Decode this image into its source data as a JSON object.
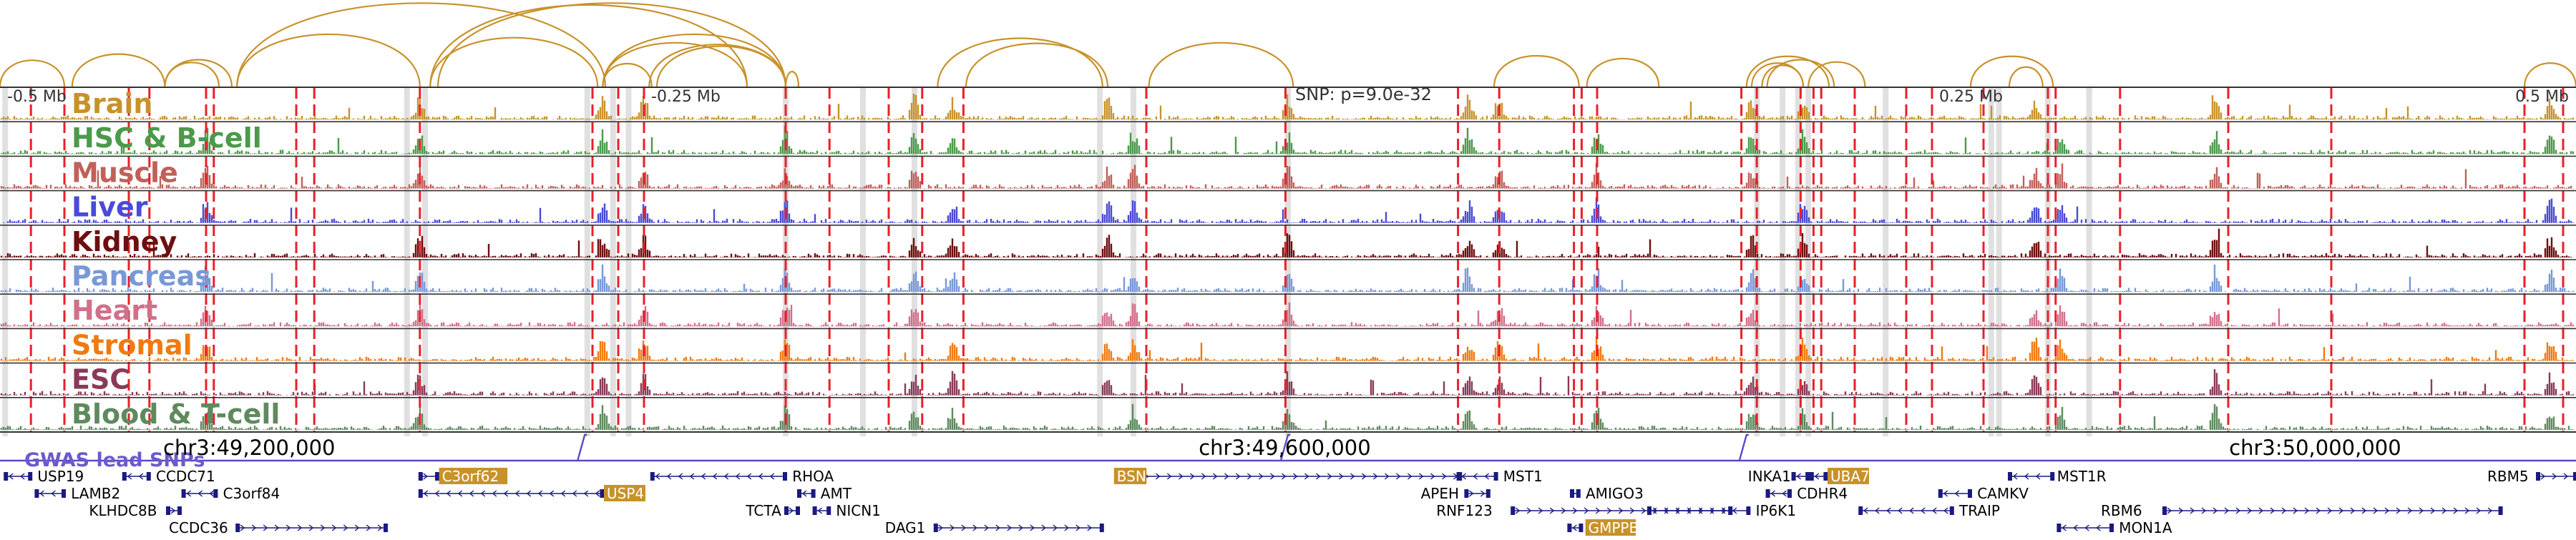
{
  "tracks": [
    {
      "name": "Brain",
      "color": "#c8922a"
    },
    {
      "name": "HSC & B-cell",
      "color": "#4a9a4a"
    },
    {
      "name": "Muscle",
      "color": "#c0605a"
    },
    {
      "name": "Liver",
      "color": "#4a4ad8"
    },
    {
      "name": "Kidney",
      "color": "#6e0e0e"
    },
    {
      "name": "Pancreas",
      "color": "#7898d8"
    },
    {
      "name": "Heart",
      "color": "#d0708a"
    },
    {
      "name": "Stromal",
      "color": "#f07a10"
    },
    {
      "name": "ESC",
      "color": "#8a3a58"
    },
    {
      "name": "Blood & T-cell",
      "color": "#5e8a5e"
    }
  ],
  "axis_ticks": [
    {
      "label": "-0.5 Mb",
      "pos": 0.0
    },
    {
      "label": "-0.25 Mb",
      "pos": 0.25
    },
    {
      "label": "0.25 Mb",
      "pos": 0.75
    },
    {
      "label": "0.5 Mb",
      "pos": 1.0
    }
  ],
  "snp_label": "SNP: p=9.0e-32",
  "gwas_label": "GWAS lead SNPs",
  "chrom_ticks": [
    {
      "label": "chr3:49,200,000",
      "pos": 0.06
    },
    {
      "label": "chr3:49,600,000",
      "pos": 0.462
    },
    {
      "label": "chr3:50,000,000",
      "pos": 0.862
    }
  ],
  "genes": [
    {
      "name": "USP19",
      "row": 0,
      "start": 0.002,
      "end": 0.012,
      "label_pos": 0.014,
      "dir": "left"
    },
    {
      "name": "CCDC71",
      "row": 0,
      "start": 0.048,
      "end": 0.058,
      "label_pos": 0.06,
      "dir": "left"
    },
    {
      "name": "C3orf62",
      "row": 0,
      "start": 0.163,
      "end": 0.17,
      "label_pos": 0.171,
      "dir": "right",
      "highlight": true
    },
    {
      "name": "RHOA",
      "row": 0,
      "start": 0.253,
      "end": 0.305,
      "label_pos": 0.307,
      "dir": "left"
    },
    {
      "name": "BSN",
      "row": 0,
      "start": 0.434,
      "end": 0.567,
      "label_pos": 0.433,
      "dir": "right",
      "highlight": true,
      "label_left": true
    },
    {
      "name": "MST1",
      "row": 0,
      "start": 0.566,
      "end": 0.581,
      "label_pos": 0.583,
      "dir": "left"
    },
    {
      "name": "INKA1",
      "row": 0,
      "start": 0.696,
      "end": 0.702,
      "label_pos": 0.678,
      "dir": "left",
      "label_left": true
    },
    {
      "name": "UBA7",
      "row": 0,
      "start": 0.703,
      "end": 0.709,
      "label_pos": 0.71,
      "dir": "left",
      "highlight": true
    },
    {
      "name": "MST1R",
      "row": 0,
      "start": 0.78,
      "end": 0.797,
      "label_pos": 0.798,
      "dir": "left"
    },
    {
      "name": "RBM5",
      "row": 0,
      "start": 0.985,
      "end": 1.0,
      "label_pos": 0.965,
      "dir": "right",
      "label_left": true
    },
    {
      "name": "LAMB2",
      "row": 1,
      "start": 0.014,
      "end": 0.025,
      "label_pos": 0.027,
      "dir": "left"
    },
    {
      "name": "C3orf84",
      "row": 1,
      "start": 0.071,
      "end": 0.084,
      "label_pos": 0.086,
      "dir": "left"
    },
    {
      "name": "USP4",
      "row": 1,
      "start": 0.163,
      "end": 0.234,
      "label_pos": 0.235,
      "dir": "left",
      "highlight": true
    },
    {
      "name": "AMT",
      "row": 1,
      "start": 0.31,
      "end": 0.316,
      "label_pos": 0.318,
      "dir": "left"
    },
    {
      "name": "APEH",
      "row": 1,
      "start": 0.569,
      "end": 0.578,
      "label_pos": 0.551,
      "dir": "right",
      "label_left": true
    },
    {
      "name": "AMIGO3",
      "row": 1,
      "start": 0.61,
      "end": 0.613,
      "label_pos": 0.615,
      "dir": "right"
    },
    {
      "name": "CDHR4",
      "row": 1,
      "start": 0.686,
      "end": 0.695,
      "label_pos": 0.697,
      "dir": "left"
    },
    {
      "name": "CAMKV",
      "row": 1,
      "start": 0.753,
      "end": 0.765,
      "label_pos": 0.767,
      "dir": "left"
    },
    {
      "name": "KLHDC8B",
      "row": 2,
      "start": 0.065,
      "end": 0.07,
      "label_pos": 0.034,
      "dir": "right",
      "label_left": true
    },
    {
      "name": "TCTA",
      "row": 2,
      "start": 0.305,
      "end": 0.31,
      "label_pos": 0.289,
      "dir": "right",
      "label_left": true
    },
    {
      "name": "NICN1",
      "row": 2,
      "start": 0.316,
      "end": 0.322,
      "label_pos": 0.324,
      "dir": "left"
    },
    {
      "name": "RNF123",
      "row": 2,
      "start": 0.587,
      "end": 0.672,
      "label_pos": 0.557,
      "dir": "right",
      "label_left": true
    },
    {
      "name": "IP6K1",
      "row": 2,
      "start": 0.64,
      "end": 0.679,
      "label_pos": 0.681,
      "dir": "left"
    },
    {
      "name": "TRAIP",
      "row": 2,
      "start": 0.722,
      "end": 0.758,
      "label_pos": 0.76,
      "dir": "left"
    },
    {
      "name": "RBM6",
      "row": 2,
      "start": 0.84,
      "end": 0.971,
      "label_pos": 0.815,
      "dir": "right",
      "label_left": true
    },
    {
      "name": "CCDC36",
      "row": 3,
      "start": 0.092,
      "end": 0.15,
      "label_pos": 0.065,
      "dir": "right",
      "label_left": true
    },
    {
      "name": "DAG1",
      "row": 3,
      "start": 0.363,
      "end": 0.428,
      "label_pos": 0.343,
      "dir": "right",
      "label_left": true
    },
    {
      "name": "GMPPB",
      "row": 3,
      "start": 0.609,
      "end": 0.614,
      "label_pos": 0.616,
      "dir": "left",
      "highlight": true
    },
    {
      "name": "MON1A",
      "row": 3,
      "start": 0.799,
      "end": 0.82,
      "label_pos": 0.822,
      "dir": "left"
    }
  ],
  "red_lines": [
    0.012,
    0.025,
    0.05,
    0.058,
    0.08,
    0.083,
    0.115,
    0.122,
    0.163,
    0.23,
    0.24,
    0.25,
    0.305,
    0.322,
    0.345,
    0.358,
    0.374,
    0.445,
    0.499,
    0.566,
    0.582,
    0.611,
    0.614,
    0.62,
    0.676,
    0.682,
    0.699,
    0.704,
    0.707,
    0.72,
    0.74,
    0.75,
    0.77,
    0.795,
    0.798,
    0.823,
    0.865,
    0.905,
    0.98,
    0.995
  ],
  "gray_bands": [
    0.002,
    0.158,
    0.165,
    0.228,
    0.238,
    0.244,
    0.305,
    0.335,
    0.355,
    0.427,
    0.44,
    0.5,
    0.682,
    0.692,
    0.698,
    0.702,
    0.732,
    0.773,
    0.776,
    0.795,
    0.811
  ],
  "arcs": [
    [
      0.0,
      0.025
    ],
    [
      0.028,
      0.064
    ],
    [
      0.064,
      0.085
    ],
    [
      0.064,
      0.09
    ],
    [
      0.092,
      0.163
    ],
    [
      0.092,
      0.235
    ],
    [
      0.167,
      0.232
    ],
    [
      0.167,
      0.29
    ],
    [
      0.17,
      0.305
    ],
    [
      0.234,
      0.253
    ],
    [
      0.234,
      0.29
    ],
    [
      0.234,
      0.305
    ],
    [
      0.252,
      0.305
    ],
    [
      0.255,
      0.305
    ],
    [
      0.305,
      0.31
    ],
    [
      0.364,
      0.428
    ],
    [
      0.375,
      0.43
    ],
    [
      0.446,
      0.502
    ],
    [
      0.58,
      0.613
    ],
    [
      0.616,
      0.644
    ],
    [
      0.678,
      0.71
    ],
    [
      0.68,
      0.7
    ],
    [
      0.684,
      0.7
    ],
    [
      0.686,
      0.712
    ],
    [
      0.702,
      0.724
    ],
    [
      0.765,
      0.797
    ],
    [
      0.78,
      0.793
    ],
    [
      0.98,
      1.0
    ]
  ],
  "gwas_snps": [
    0.227,
    0.5,
    0.678
  ]
}
